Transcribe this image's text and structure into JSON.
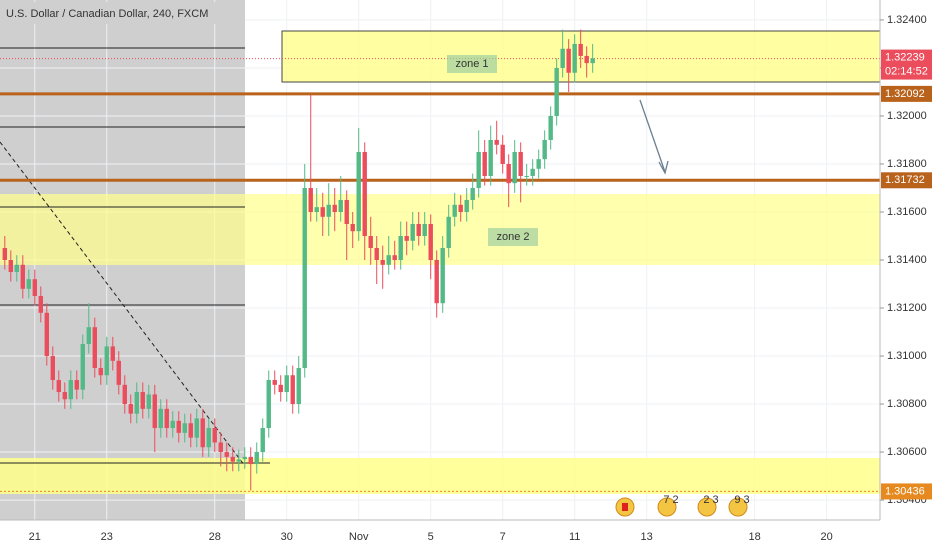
{
  "chart_data": {
    "type": "candlestick",
    "title": "U.S. Dollar / Canadian Dollar, 240, FXCM",
    "up_color": "#53b987",
    "down_color": "#eb4d5c",
    "open": [
      1.3145,
      1.314,
      1.3135,
      1.3138,
      1.3128,
      1.3132,
      1.3125,
      1.3118,
      1.31,
      1.309,
      1.3085,
      1.3082,
      1.309,
      1.3086,
      1.3105,
      1.3112,
      1.3095,
      1.3092,
      1.3104,
      1.3098,
      1.3088,
      1.308,
      1.3076,
      1.3085,
      1.3078,
      1.3084,
      1.307,
      1.3078,
      1.307,
      1.3073,
      1.3068,
      1.3072,
      1.3066,
      1.3074,
      1.3062,
      1.307,
      1.3064,
      1.306,
      1.3058,
      1.3056,
      1.3057,
      1.3058,
      1.3055,
      1.306,
      1.307,
      1.309,
      1.3088,
      1.3085,
      1.3092,
      1.308,
      1.3095,
      1.317,
      1.316,
      1.3162,
      1.3158,
      1.3163,
      1.316,
      1.3165,
      1.3155,
      1.3152,
      1.3185,
      1.315,
      1.3145,
      1.314,
      1.3138,
      1.3142,
      1.314,
      1.315,
      1.3148,
      1.3155,
      1.315,
      1.3155,
      1.314,
      1.3122,
      1.3145,
      1.3158,
      1.3163,
      1.316,
      1.3165,
      1.317,
      1.3185,
      1.3175,
      1.319,
      1.3188,
      1.318,
      1.3172,
      1.3185,
      1.3175,
      1.3175,
      1.3178,
      1.3182,
      1.319,
      1.32,
      1.322,
      1.3228,
      1.3218,
      1.323,
      1.3225,
      1.3222
    ],
    "high": [
      1.315,
      1.3144,
      1.3142,
      1.3142,
      1.3136,
      1.3136,
      1.3129,
      1.3122,
      1.3104,
      1.3094,
      1.3089,
      1.3094,
      1.3094,
      1.3109,
      1.3122,
      1.3116,
      1.3099,
      1.3108,
      1.3108,
      1.3102,
      1.3092,
      1.3084,
      1.3089,
      1.3089,
      1.3088,
      1.3088,
      1.3082,
      1.3082,
      1.3077,
      1.3077,
      1.3076,
      1.3076,
      1.3078,
      1.3078,
      1.3074,
      1.3074,
      1.3068,
      1.3064,
      1.3062,
      1.3061,
      1.3062,
      1.3062,
      1.3064,
      1.3074,
      1.3094,
      1.3094,
      1.3092,
      1.3096,
      1.3096,
      1.31,
      1.318,
      1.3209,
      1.317,
      1.3168,
      1.3172,
      1.317,
      1.3175,
      1.3169,
      1.316,
      1.3195,
      1.3189,
      1.3158,
      1.315,
      1.3146,
      1.315,
      1.3148,
      1.3156,
      1.3156,
      1.316,
      1.316,
      1.316,
      1.3159,
      1.3144,
      1.315,
      1.3163,
      1.3168,
      1.3167,
      1.317,
      1.3176,
      1.3194,
      1.319,
      1.3196,
      1.3198,
      1.3192,
      1.3184,
      1.319,
      1.3189,
      1.318,
      1.3182,
      1.3186,
      1.3194,
      1.3204,
      1.3224,
      1.3236,
      1.3232,
      1.3234,
      1.3236,
      1.3229,
      1.323
    ],
    "low": [
      1.3136,
      1.3131,
      1.3131,
      1.3124,
      1.3124,
      1.3121,
      1.3114,
      1.3096,
      1.3086,
      1.3081,
      1.3078,
      1.3078,
      1.3082,
      1.3082,
      1.3101,
      1.3091,
      1.3088,
      1.3088,
      1.3094,
      1.3084,
      1.3076,
      1.3072,
      1.3072,
      1.3074,
      1.3074,
      1.306,
      1.3066,
      1.3066,
      1.3066,
      1.3064,
      1.3064,
      1.3062,
      1.3062,
      1.3058,
      1.3058,
      1.306,
      1.3054,
      1.3052,
      1.3052,
      1.3052,
      1.3053,
      1.3044,
      1.3051,
      1.3056,
      1.3066,
      1.3084,
      1.3081,
      1.3081,
      1.3076,
      1.3076,
      1.3091,
      1.3156,
      1.3156,
      1.315,
      1.315,
      1.3152,
      1.3156,
      1.314,
      1.3145,
      1.3148,
      1.314,
      1.3138,
      1.313,
      1.3128,
      1.3134,
      1.3136,
      1.3136,
      1.3142,
      1.3144,
      1.3146,
      1.3146,
      1.3132,
      1.3116,
      1.3118,
      1.3141,
      1.3154,
      1.3156,
      1.3156,
      1.3161,
      1.3166,
      1.3171,
      1.3171,
      1.3184,
      1.3176,
      1.3162,
      1.3168,
      1.3164,
      1.3171,
      1.3171,
      1.3174,
      1.3178,
      1.3186,
      1.3196,
      1.3216,
      1.321,
      1.3214,
      1.322,
      1.3216,
      1.3218
    ],
    "close": [
      1.314,
      1.3135,
      1.3138,
      1.3128,
      1.3132,
      1.3125,
      1.3118,
      1.31,
      1.309,
      1.3085,
      1.3082,
      1.309,
      1.3086,
      1.3105,
      1.3112,
      1.3095,
      1.3092,
      1.3104,
      1.3098,
      1.3088,
      1.308,
      1.3076,
      1.3085,
      1.3078,
      1.3084,
      1.307,
      1.3078,
      1.307,
      1.3073,
      1.3068,
      1.3072,
      1.3066,
      1.3074,
      1.3062,
      1.307,
      1.3064,
      1.306,
      1.3058,
      1.3056,
      1.3057,
      1.3058,
      1.3055,
      1.306,
      1.307,
      1.309,
      1.3088,
      1.3085,
      1.3092,
      1.308,
      1.3095,
      1.317,
      1.316,
      1.3162,
      1.3158,
      1.3163,
      1.316,
      1.3165,
      1.3155,
      1.3152,
      1.3185,
      1.315,
      1.3145,
      1.314,
      1.3138,
      1.3142,
      1.314,
      1.315,
      1.3148,
      1.3155,
      1.315,
      1.3155,
      1.314,
      1.3122,
      1.3145,
      1.3158,
      1.3163,
      1.316,
      1.3165,
      1.317,
      1.3185,
      1.3175,
      1.319,
      1.3188,
      1.318,
      1.3172,
      1.3185,
      1.3175,
      1.3175,
      1.3178,
      1.3182,
      1.319,
      1.32,
      1.322,
      1.3228,
      1.3218,
      1.323,
      1.3225,
      1.3222,
      1.3224
    ],
    "xlim": [
      -0.8,
      145.9
    ],
    "xticks": [
      {
        "value": 5,
        "label": "21"
      },
      {
        "value": 17,
        "label": "23"
      },
      {
        "value": 35,
        "label": "28"
      },
      {
        "value": 47,
        "label": "30"
      },
      {
        "value": 59,
        "label": "Nov"
      },
      {
        "value": 71,
        "label": "5"
      },
      {
        "value": 83,
        "label": "7"
      },
      {
        "value": 95,
        "label": "11"
      },
      {
        "value": 107,
        "label": "13"
      },
      {
        "value": 125,
        "label": "18"
      },
      {
        "value": 137,
        "label": "20"
      }
    ],
    "ylim": [
      1.30317,
      1.32483
    ],
    "yticks": [
      {
        "value": 1.324,
        "label": "1.32400"
      },
      {
        "value": 1.322,
        "label": "1.32200"
      },
      {
        "value": 1.32,
        "label": "1.32000"
      },
      {
        "value": 1.318,
        "label": "1.31800"
      },
      {
        "value": 1.316,
        "label": "1.31600"
      },
      {
        "value": 1.314,
        "label": "1.31400"
      },
      {
        "value": 1.312,
        "label": "1.31200"
      },
      {
        "value": 1.31,
        "label": "1.31000"
      },
      {
        "value": 1.308,
        "label": "1.30800"
      },
      {
        "value": 1.306,
        "label": "1.30600"
      },
      {
        "value": 1.304,
        "label": "1.30400"
      }
    ],
    "last_price": 1.32239,
    "last_price_color": "#eb4d5c",
    "countdown": "02:14:52",
    "price_lines": [
      {
        "value": 1.32092,
        "color": "#b8621b"
      },
      {
        "value": 1.31732,
        "color": "#b8621b"
      },
      {
        "value": 1.30436,
        "color": "#e6891e"
      }
    ],
    "annotations": [
      "zone 1",
      "zone 2"
    ],
    "events": [
      "7 2",
      "2 3",
      "9 3"
    ]
  }
}
